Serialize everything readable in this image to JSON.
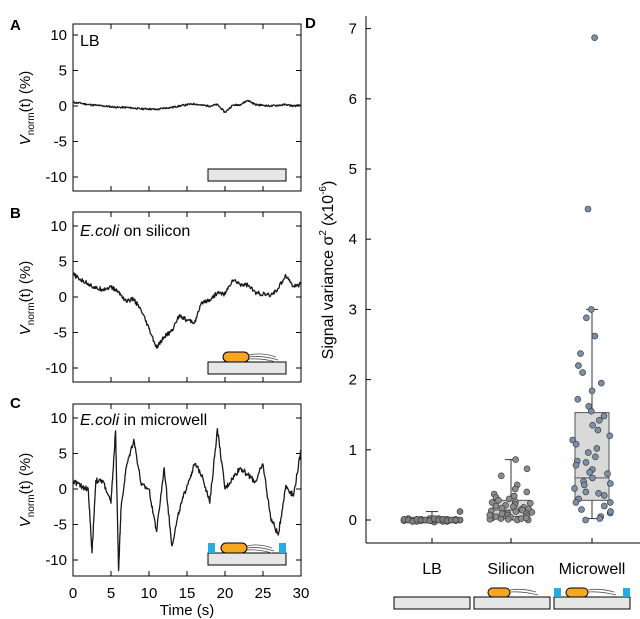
{
  "panels": [
    {
      "letter": "A",
      "label": "LB",
      "label_italic": "",
      "label_rest": "LB",
      "ylabel_main": "V",
      "ylabel_sub": "norm",
      "ylabel_rest": "(t)  (%)",
      "yticks": [
        "10",
        "5",
        "0",
        "-5",
        "-10"
      ],
      "inset": "substrate"
    },
    {
      "letter": "B",
      "label_italic": "E.coli",
      "label_rest": " on silicon",
      "ylabel_main": "V",
      "ylabel_sub": "norm",
      "ylabel_rest": "(t)  (%)",
      "yticks": [
        "10",
        "5",
        "0",
        "-5",
        "-10"
      ],
      "inset": "bacterium-on-substrate"
    },
    {
      "letter": "C",
      "label_italic": "E.coli",
      "label_rest": " in microwell",
      "ylabel_main": "V",
      "ylabel_sub": "norm",
      "ylabel_rest": "(t)  (%)",
      "yticks": [
        "10",
        "5",
        "0",
        "-5",
        "-10"
      ],
      "inset": "bacterium-in-microwell",
      "xticks": [
        "0",
        "5",
        "10",
        "15",
        "20",
        "25",
        "30"
      ],
      "xlabel": "Time (s)"
    },
    {
      "letter": "D",
      "ylabel_text": "Signal variance  σ",
      "ylabel_sup": "2",
      "ylabel_unit": "(x10",
      "ylabel_unit_sup": "-6",
      "ylabel_unit_end": ")",
      "yticks": [
        "0",
        "1",
        "2",
        "3",
        "4",
        "5",
        "6",
        "7"
      ],
      "categories": [
        "LB",
        "Silicon",
        "Microwell"
      ]
    }
  ],
  "colors": {
    "trace": "#1a1a1a",
    "lb_points": "#7d7d7d",
    "silicon_points": "#8c8c8c",
    "microwell_points": "#7b8fa8",
    "box_fill": "#d9d9d9",
    "substrate": "#e6e6e6",
    "bacterium": "#f5a623",
    "microwell_edge": "#29abe2"
  },
  "chart_data": [
    {
      "type": "line",
      "panel": "A",
      "title": "LB",
      "xlabel": "",
      "ylabel": "Vnorm(t) (%)",
      "xlim": [
        0,
        30
      ],
      "ylim": [
        -12,
        12
      ],
      "x": [
        0,
        1,
        2,
        3,
        4,
        5,
        6,
        7,
        8,
        9,
        10,
        11,
        12,
        13,
        14,
        15,
        16,
        17,
        18,
        19,
        20,
        21,
        22,
        23,
        24,
        25,
        26,
        27,
        28,
        29,
        30
      ],
      "y": [
        0.5,
        0.4,
        0.2,
        0.1,
        0.0,
        -0.1,
        -0.2,
        -0.2,
        -0.3,
        -0.4,
        -0.4,
        -0.5,
        -0.3,
        -0.2,
        0.0,
        0.2,
        0.3,
        0.1,
        0.0,
        0.2,
        -0.9,
        0.1,
        0.2,
        0.8,
        0.2,
        0.1,
        0.0,
        0.1,
        0.2,
        0.0,
        0.1
      ]
    },
    {
      "type": "line",
      "panel": "B",
      "title": "E.coli on silicon",
      "xlabel": "",
      "ylabel": "Vnorm(t) (%)",
      "xlim": [
        0,
        30
      ],
      "ylim": [
        -12,
        12
      ],
      "x": [
        0,
        1,
        2,
        3,
        4,
        5,
        6,
        7,
        8,
        9,
        10,
        11,
        12,
        13,
        14,
        15,
        16,
        17,
        18,
        19,
        20,
        21,
        22,
        23,
        24,
        25,
        26,
        27,
        28,
        29,
        30
      ],
      "y": [
        3.2,
        2.4,
        1.9,
        1.2,
        1.1,
        1.4,
        0.7,
        -0.6,
        -0.3,
        -2.0,
        -4.5,
        -7.2,
        -5.6,
        -4.8,
        -2.5,
        -3.3,
        -3.6,
        -0.7,
        -0.4,
        0.6,
        0.4,
        2.4,
        1.8,
        1.7,
        0.6,
        0.4,
        0.2,
        1.2,
        3.1,
        1.5,
        1.8
      ]
    },
    {
      "type": "line",
      "panel": "C",
      "title": "E.coli in microwell",
      "xlabel": "Time (s)",
      "ylabel": "Vnorm(t) (%)",
      "xlim": [
        0,
        30
      ],
      "ylim": [
        -12,
        12
      ],
      "x": [
        0,
        1,
        2,
        2.5,
        3,
        4,
        5,
        5.6,
        6,
        6.3,
        7,
        8,
        9,
        10,
        11,
        12,
        13,
        14,
        15,
        16,
        17,
        18,
        19,
        20,
        21,
        22,
        23,
        24,
        25,
        26,
        27,
        28,
        29,
        30
      ],
      "y": [
        1.2,
        0.4,
        0.0,
        -9.0,
        1.2,
        1.0,
        -2.0,
        8.2,
        -11.5,
        -3.0,
        3.0,
        7.0,
        0.5,
        0.0,
        -6.0,
        3.0,
        -8.0,
        -3.0,
        0.5,
        3.5,
        2.0,
        -2.0,
        8.5,
        0.0,
        1.5,
        3.0,
        2.0,
        1.0,
        3.5,
        -4.0,
        -6.5,
        0.5,
        -1.0,
        5.5
      ]
    },
    {
      "type": "scatter",
      "panel": "D",
      "title": "",
      "xlabel": "",
      "ylabel": "Signal variance σ2 (x10-6)",
      "ylim": [
        -0.3,
        7.1
      ],
      "categories": [
        "LB",
        "Silicon",
        "Microwell"
      ],
      "series": [
        {
          "category": "LB",
          "values": [
            0.0,
            0.0,
            -0.02,
            0.01,
            -0.01,
            0.0,
            0.02,
            -0.03,
            0.0,
            0.01,
            -0.02,
            0.0,
            0.01,
            0.0,
            -0.01,
            0.02,
            0.0,
            -0.02,
            0.01,
            0.0,
            -0.01,
            0.0,
            0.02,
            -0.02,
            0.01,
            0.0,
            -0.01,
            0.0,
            0.01,
            0.0,
            -0.02,
            0.01,
            0.0,
            0.0,
            -0.01,
            0.02,
            0.0,
            0.01,
            -0.01,
            0.0,
            0.0,
            0.12
          ]
        },
        {
          "category": "Silicon",
          "values": [
            0.86,
            0.73,
            0.63,
            0.5,
            0.44,
            0.4,
            0.37,
            0.34,
            0.32,
            0.3,
            0.28,
            0.26,
            0.25,
            0.24,
            0.22,
            0.21,
            0.2,
            0.19,
            0.18,
            0.17,
            0.16,
            0.15,
            0.14,
            0.13,
            0.12,
            0.11,
            0.1,
            0.09,
            0.08,
            0.07,
            0.06,
            0.05,
            0.04,
            0.03,
            0.02,
            0.01,
            0.0,
            0.0,
            0.01,
            0.02,
            0.03,
            0.05,
            0.07,
            0.09
          ]
        },
        {
          "category": "Microwell",
          "values": [
            6.87,
            4.43,
            3.0,
            2.88,
            2.62,
            2.37,
            2.2,
            2.1,
            1.95,
            1.84,
            1.72,
            1.62,
            1.55,
            1.48,
            1.42,
            1.35,
            1.28,
            1.2,
            1.14,
            1.08,
            1.02,
            0.96,
            0.9,
            0.84,
            0.78,
            0.72,
            0.66,
            0.6,
            0.55,
            0.5,
            0.45,
            0.4,
            0.35,
            0.3,
            0.25,
            0.2,
            0.15,
            0.1,
            0.05,
            0.02,
            0.0,
            0.12,
            0.25,
            0.38,
            0.52,
            0.68,
            0.82
          ]
        }
      ],
      "boxes": [
        {
          "category": "LB",
          "q1": -0.02,
          "median": 0.0,
          "q3": 0.02,
          "whisker_low": -0.03,
          "whisker_high": 0.12
        },
        {
          "category": "Silicon",
          "q1": 0.05,
          "median": 0.14,
          "q3": 0.28,
          "whisker_low": 0.0,
          "whisker_high": 0.86
        },
        {
          "category": "Microwell",
          "q1": 0.28,
          "median": 0.6,
          "q3": 1.53,
          "whisker_low": 0.02,
          "whisker_high": 3.0
        }
      ]
    }
  ]
}
